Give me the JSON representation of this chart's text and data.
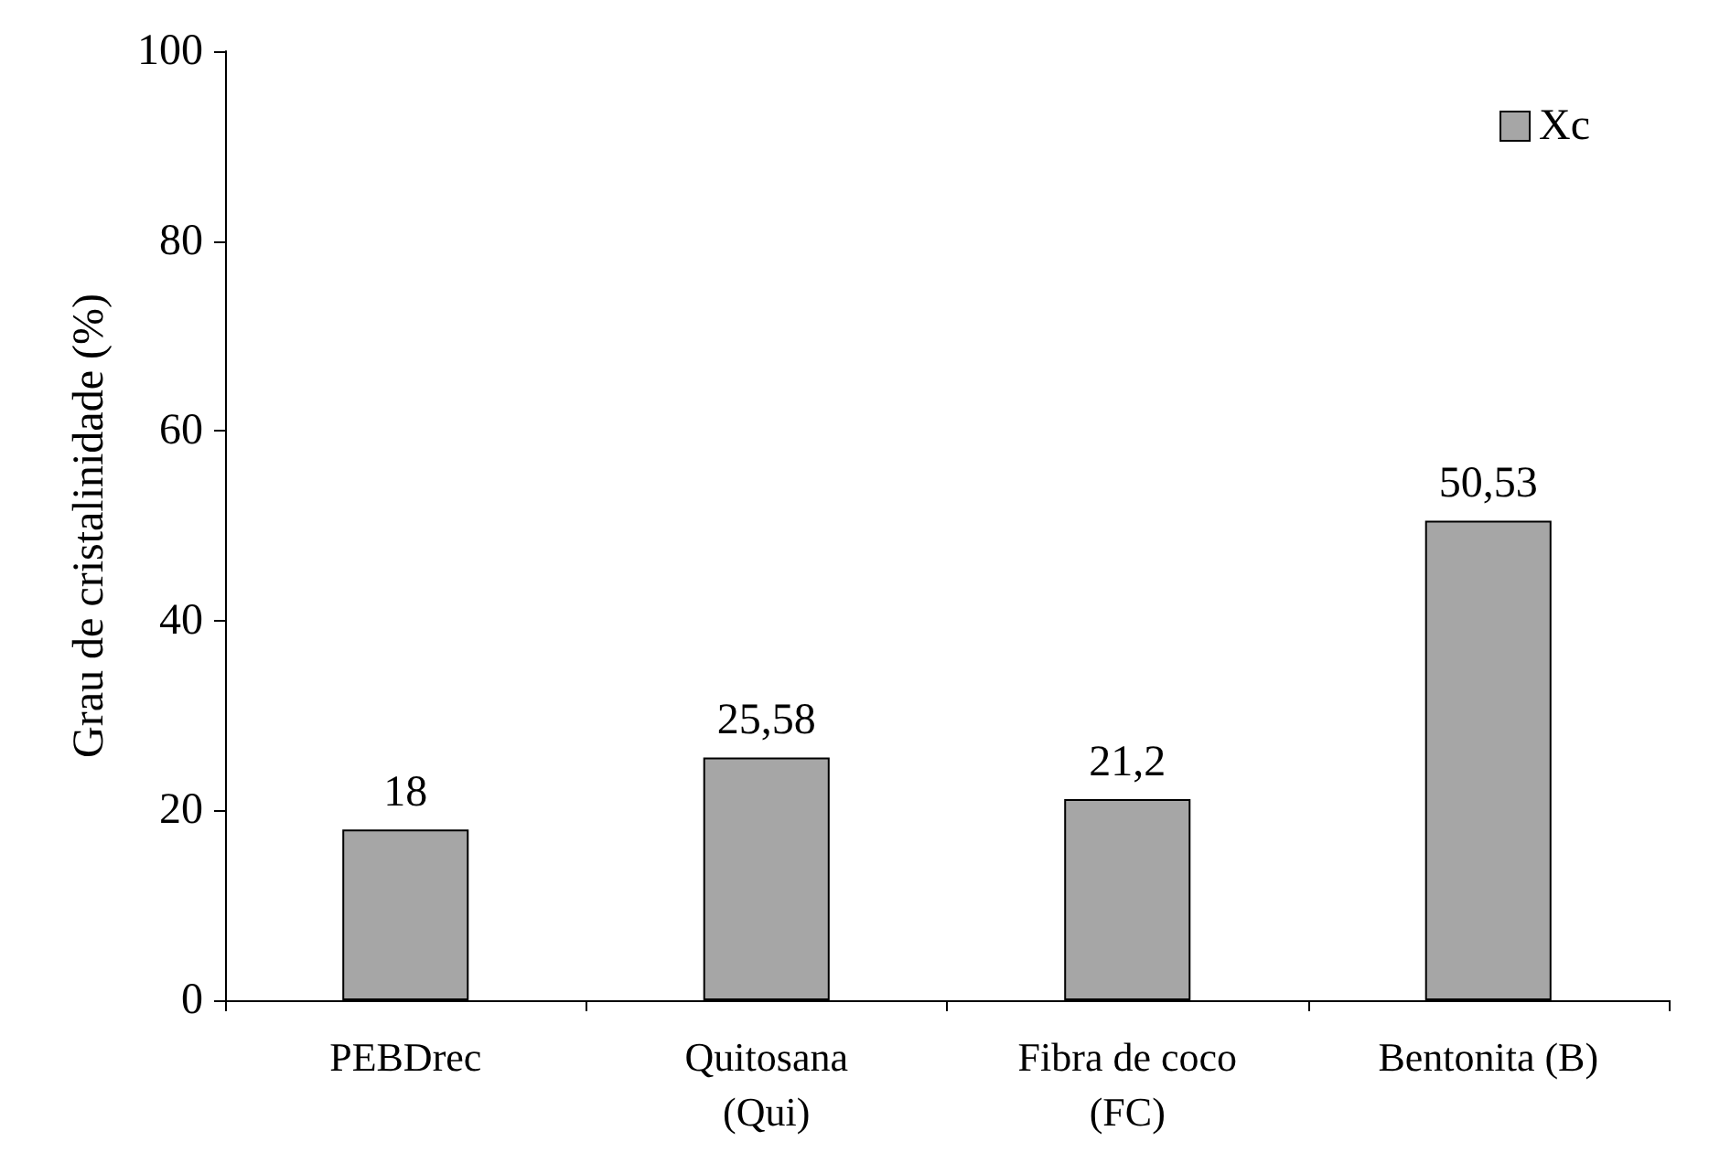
{
  "chart_data": {
    "type": "bar",
    "ylabel": "Grau de cristalinidade (%)",
    "categories": [
      "PEBDrec",
      "Quitosana\n(Qui)",
      "Fibra de coco\n(FC)",
      "Bentonita (B)"
    ],
    "series": [
      {
        "name": "Xc",
        "color": "#a6a6a6",
        "values": [
          18,
          25.58,
          21.2,
          50.53
        ],
        "value_labels": [
          "18",
          "25,58",
          "21,2",
          "50,53"
        ]
      }
    ],
    "ylim": [
      0,
      100
    ],
    "yticks": [
      0,
      20,
      40,
      60,
      80,
      100
    ],
    "grid": false,
    "legend": "top right"
  }
}
